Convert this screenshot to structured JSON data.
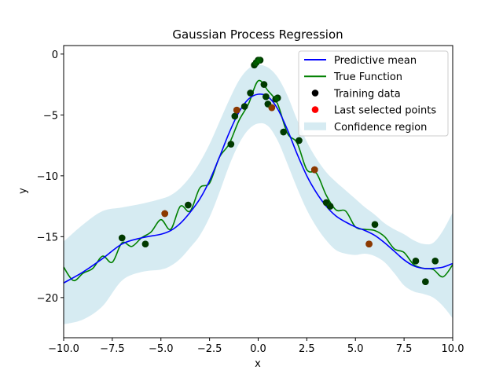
{
  "chart_data": {
    "type": "line",
    "title": "Gaussian Process Regression",
    "xlabel": "x",
    "ylabel": "y",
    "xlim": [
      -10,
      10
    ],
    "ylim": [
      -23.3,
      0.7
    ],
    "x_ticks": [
      -10,
      -7.5,
      -5,
      -2.5,
      0,
      2.5,
      5,
      7.5,
      10
    ],
    "x_tick_labels": [
      "−10.0",
      "−7.5",
      "−5.0",
      "−2.5",
      "0.0",
      "2.5",
      "5.0",
      "7.5",
      "10.0"
    ],
    "y_ticks": [
      0,
      -5,
      -10,
      -15,
      -20
    ],
    "y_tick_labels": [
      "0",
      "−5",
      "−10",
      "−15",
      "−20"
    ],
    "grid": false,
    "legend_position": "top-right",
    "colors": {
      "predictive_mean": "#0000ff",
      "true_function": "#008000",
      "training_data": "#000000",
      "last_selected": "#ff0000",
      "confidence": "#add8e6"
    },
    "legend": [
      {
        "label": "Predictive mean",
        "kind": "line",
        "color": "#0000ff"
      },
      {
        "label": "True Function",
        "kind": "line",
        "color": "#008000"
      },
      {
        "label": "Training data",
        "kind": "dot",
        "color": "#000000"
      },
      {
        "label": "Last selected points",
        "kind": "dot",
        "color": "#ff0000"
      },
      {
        "label": "Confidence region",
        "kind": "patch",
        "color": "#add8e6"
      }
    ],
    "series": [
      {
        "name": "Predictive mean",
        "x": [
          -10,
          -9,
          -8,
          -7,
          -6,
          -5,
          -4.5,
          -4,
          -3.5,
          -3,
          -2.5,
          -2,
          -1.5,
          -1,
          -0.5,
          0,
          0.5,
          1,
          1.5,
          2,
          2.5,
          3,
          3.5,
          4,
          4.5,
          5,
          5.5,
          6,
          6.5,
          7,
          7.5,
          8,
          8.5,
          9,
          9.5,
          10
        ],
        "y": [
          -18.8,
          -17.9,
          -16.8,
          -15.6,
          -15.1,
          -14.8,
          -14.5,
          -13.9,
          -13.0,
          -11.9,
          -10.4,
          -8.5,
          -6.5,
          -4.8,
          -3.7,
          -3.3,
          -3.5,
          -4.5,
          -6.2,
          -8.2,
          -10.0,
          -11.4,
          -12.5,
          -13.3,
          -13.8,
          -14.2,
          -14.5,
          -14.9,
          -15.5,
          -16.2,
          -16.9,
          -17.4,
          -17.6,
          -17.6,
          -17.5,
          -17.2
        ]
      },
      {
        "name": "Confidence region",
        "x": [
          -10,
          -9,
          -8,
          -7,
          -6,
          -5,
          -4.5,
          -4,
          -3.5,
          -3,
          -2.5,
          -2,
          -1.5,
          -1,
          -0.5,
          0,
          0.5,
          1,
          1.5,
          2,
          2.5,
          3,
          3.5,
          4,
          4.5,
          5,
          5.5,
          6,
          6.5,
          7,
          7.5,
          8,
          8.5,
          9,
          9.5,
          10
        ],
        "upper": [
          -15.4,
          -14.0,
          -12.9,
          -12.6,
          -12.3,
          -11.9,
          -11.6,
          -11.0,
          -10.1,
          -8.9,
          -7.4,
          -5.6,
          -3.8,
          -2.2,
          -1.2,
          -0.9,
          -1.1,
          -1.9,
          -3.4,
          -5.4,
          -7.2,
          -8.6,
          -9.7,
          -10.5,
          -11.2,
          -11.9,
          -12.6,
          -13.2,
          -13.9,
          -14.4,
          -14.8,
          -15.3,
          -15.6,
          -15.5,
          -14.5,
          -13.0
        ],
        "lower": [
          -22.2,
          -21.8,
          -20.7,
          -18.6,
          -17.9,
          -17.7,
          -17.4,
          -16.8,
          -15.9,
          -14.9,
          -13.4,
          -11.4,
          -9.2,
          -7.4,
          -6.2,
          -5.7,
          -5.9,
          -7.1,
          -9.0,
          -11.0,
          -12.8,
          -14.2,
          -15.3,
          -16.1,
          -16.4,
          -16.5,
          -16.4,
          -16.6,
          -17.1,
          -18.0,
          -19.0,
          -19.5,
          -19.7,
          -20.0,
          -20.7,
          -21.7
        ]
      },
      {
        "name": "True Function",
        "x": [
          -10,
          -9.5,
          -9,
          -8.5,
          -8,
          -7.5,
          -7,
          -6.5,
          -6,
          -5.5,
          -5,
          -4.5,
          -4,
          -3.5,
          -3,
          -2.5,
          -2,
          -1.5,
          -1,
          -0.5,
          0,
          0.5,
          1,
          1.5,
          2,
          2.5,
          3,
          3.5,
          4,
          4.5,
          5,
          5.5,
          6,
          6.5,
          7,
          7.5,
          8,
          8.5,
          9,
          9.5,
          10
        ],
        "y": [
          -17.5,
          -18.6,
          -18.0,
          -17.6,
          -16.6,
          -17.1,
          -15.5,
          -15.8,
          -15.1,
          -14.6,
          -13.6,
          -14.4,
          -12.5,
          -12.9,
          -11.0,
          -10.6,
          -8.5,
          -7.4,
          -5.5,
          -4.1,
          -2.2,
          -3.0,
          -4.1,
          -6.5,
          -7.3,
          -9.5,
          -9.8,
          -11.6,
          -12.8,
          -12.9,
          -14.2,
          -14.4,
          -14.5,
          -15.0,
          -16.0,
          -16.3,
          -17.3,
          -17.6,
          -17.7,
          -18.3,
          -17.3
        ]
      }
    ],
    "training_data": {
      "name": "Training data",
      "x": [
        -7.0,
        -5.8,
        -4.8,
        -3.6,
        -1.4,
        -1.2,
        -1.1,
        -0.7,
        -0.4,
        -0.2,
        -0.1,
        0.0,
        0.1,
        0.3,
        0.4,
        0.5,
        0.7,
        0.9,
        1.0,
        1.3,
        2.1,
        2.9,
        3.5,
        3.7,
        5.7,
        6.0,
        8.1,
        8.6,
        9.1
      ],
      "y": [
        -15.1,
        -15.6,
        -13.1,
        -12.4,
        -7.4,
        -5.1,
        -4.6,
        -4.3,
        -3.2,
        -0.9,
        -0.7,
        -0.5,
        -0.5,
        -2.5,
        -3.5,
        -4.1,
        -4.4,
        -3.7,
        -3.6,
        -6.4,
        -7.1,
        -9.5,
        -12.2,
        -12.5,
        -15.6,
        -14.0,
        -17.0,
        -18.7,
        -17.0
      ]
    },
    "last_selected_points": {
      "name": "Last selected points",
      "x": [
        -4.8,
        -1.1,
        0.7,
        2.9,
        5.7
      ],
      "y": [
        -13.1,
        -4.6,
        -4.4,
        -9.5,
        -15.6
      ]
    }
  }
}
